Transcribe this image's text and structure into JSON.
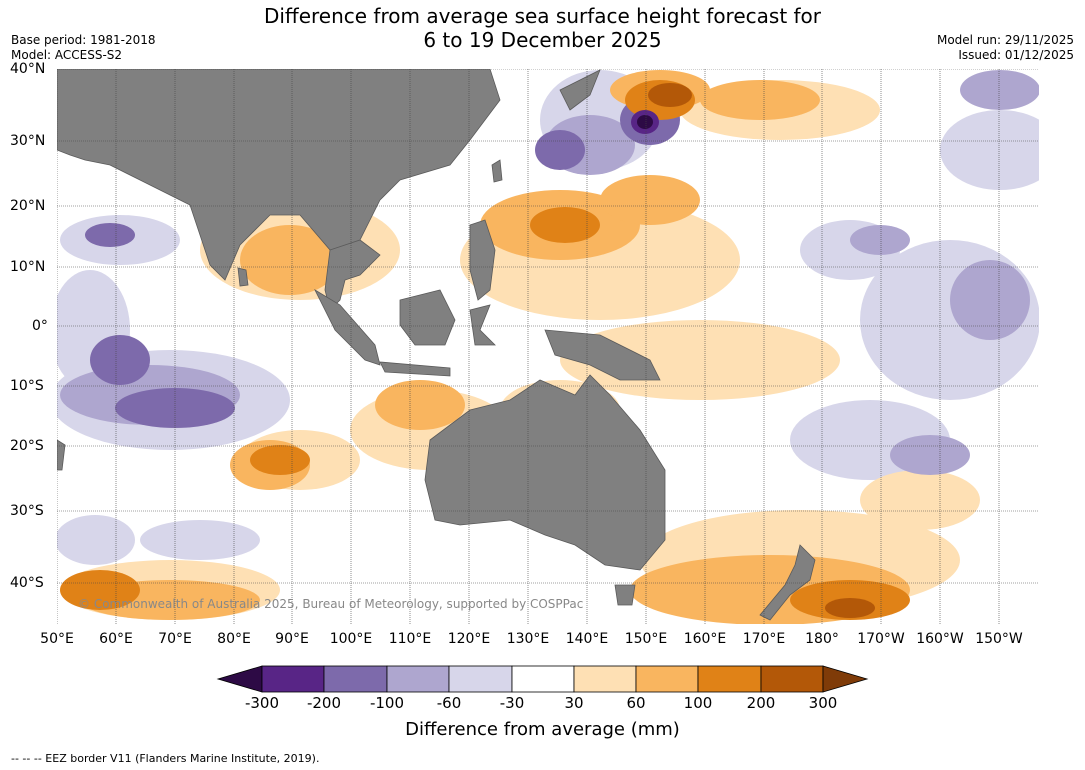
{
  "title": {
    "line1": "Difference from average sea surface height forecast for",
    "line2": "6 to 19 December 2025"
  },
  "meta_left": {
    "base_period": "Base period: 1981-2018",
    "model": "Model: ACCESS-S2"
  },
  "meta_right": {
    "model_run": "Model run: 29/11/2025",
    "issued": "Issued: 01/12/2025"
  },
  "map": {
    "lat_labels": [
      "40°N",
      "30°N",
      "20°N",
      "10°N",
      "0°",
      "10°S",
      "20°S",
      "30°S",
      "40°S"
    ],
    "lon_labels": [
      "50°E",
      "60°E",
      "70°E",
      "80°E",
      "90°E",
      "100°E",
      "110°E",
      "120°E",
      "130°E",
      "140°E",
      "150°E",
      "160°E",
      "170°E",
      "180°",
      "170°W",
      "160°W",
      "150°W"
    ],
    "copyright": "© Commonwealth of Australia 2025, Bureau of Meteorology, supported by COSPPac",
    "colors": {
      "land": "#808080",
      "ocean": "#ffffff",
      "grid": "#444444"
    }
  },
  "legend": {
    "ticks": [
      "-300",
      "-200",
      "-100",
      "-60",
      "-30",
      "30",
      "60",
      "100",
      "200",
      "300"
    ],
    "label": "Difference from average (mm)",
    "colors": [
      "#2d0a45",
      "#582586",
      "#7d6aab",
      "#aea6cf",
      "#d7d6ea",
      "#ffffff",
      "#fee0b4",
      "#f9b55f",
      "#e08217",
      "#b35808",
      "#7f3b08"
    ]
  },
  "footer": {
    "eez": "--  --  -- EEZ border V11 (Flanders Marine Institute, 2019)."
  }
}
